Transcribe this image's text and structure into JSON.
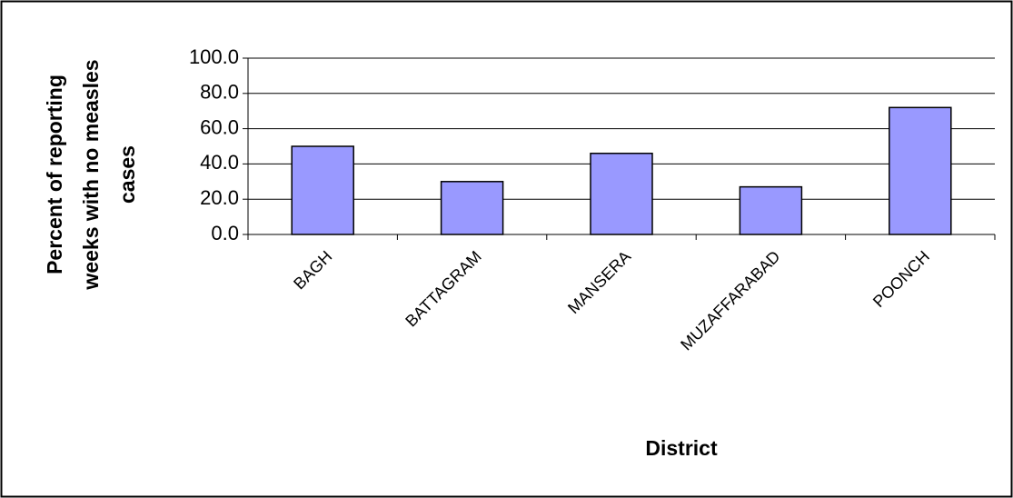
{
  "chart_data": {
    "type": "bar",
    "y_label": [
      "Percent of reporting",
      "weeks with no measles",
      "cases"
    ],
    "x_label": "District",
    "categories": [
      "BAGH",
      "BATTAGRAM",
      "MANSERA",
      "MUZAFFARABAD",
      "POONCH"
    ],
    "values": [
      50,
      30,
      46,
      27,
      72
    ],
    "color": "#9999ff",
    "ylim": [
      0,
      100
    ],
    "yticks": [
      {
        "value": 0,
        "label": "0.0"
      },
      {
        "value": 20,
        "label": "20.0"
      },
      {
        "value": 40,
        "label": "40.0"
      },
      {
        "value": 60,
        "label": "60.0"
      },
      {
        "value": 80,
        "label": "80.0"
      },
      {
        "value": 100,
        "label": "100.0"
      }
    ],
    "grid": true
  }
}
